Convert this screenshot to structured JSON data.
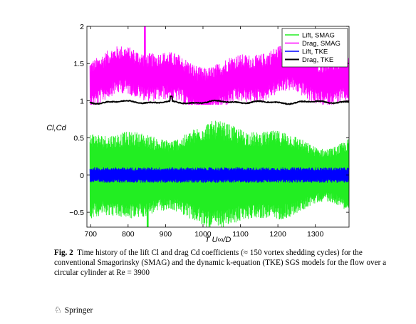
{
  "chart_data": {
    "type": "line",
    "xlabel": "T U∞/D",
    "ylabel": "Cl,Cd",
    "xlim": [
      690,
      1390
    ],
    "ylim": [
      -0.7,
      2.0
    ],
    "x_ticks": [
      "700",
      "800",
      "900",
      "1000",
      "1100",
      "1200",
      "1300"
    ],
    "y_ticks": [
      "−0.5",
      "0",
      "0.5",
      "1",
      "1.5",
      "2"
    ],
    "grid": false,
    "legend_position": "top-right",
    "series": [
      {
        "name": "Lift, SMAG",
        "color": "#22ee22",
        "description_values": {
          "mean": 0.0,
          "amplitude_min": 0.35,
          "amplitude_max": 0.8,
          "peak_min": -1.05
        }
      },
      {
        "name": "Drag, SMAG",
        "color": "#ff00ff",
        "description_values": {
          "mean": 1.3,
          "min": 0.95,
          "max": 2.0
        }
      },
      {
        "name": "Lift, TKE",
        "color": "#0000ff",
        "description_values": {
          "mean": 0.0,
          "amplitude": 0.1
        }
      },
      {
        "name": "Drag, TKE",
        "color": "#000000",
        "description_values": {
          "mean": 0.98,
          "min": 0.94,
          "max": 1.07
        }
      }
    ]
  },
  "caption": {
    "label": "Fig. 2",
    "text": "Time history of the lift Cl and drag Cd coefficients (≈ 150 vortex shedding cycles) for the conventional Smagorinsky (SMAG) and the dynamic k-equation (TKE) SGS models for the flow over a circular cylinder at Re = 3900"
  },
  "footer": {
    "publisher": "Springer"
  }
}
